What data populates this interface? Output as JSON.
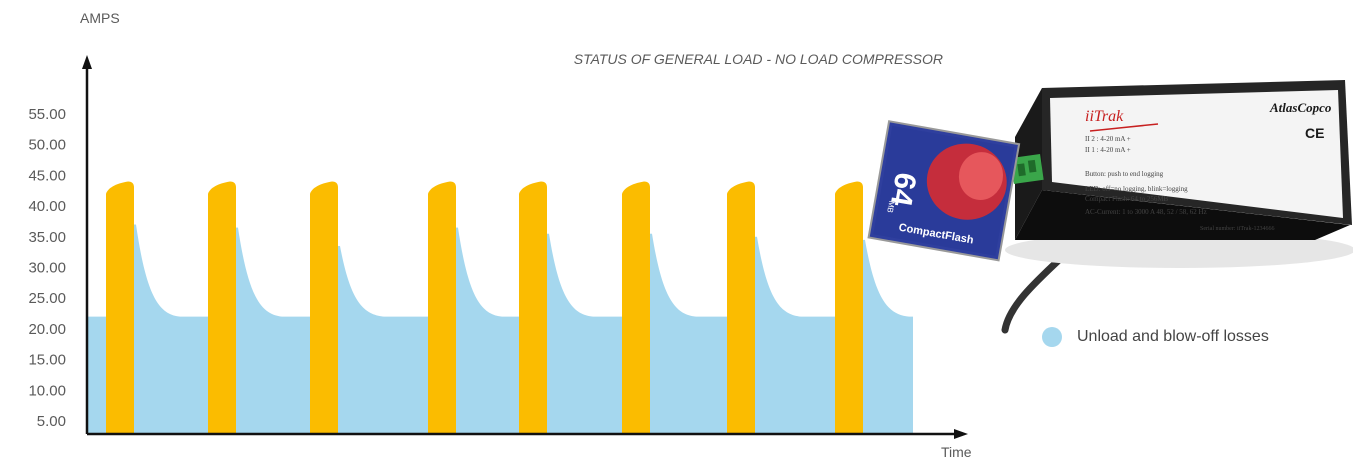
{
  "chart_data": {
    "type": "area",
    "title": "STATUS OF GENERAL LOAD - NO LOAD COMPRESSOR",
    "ylabel": "AMPS",
    "xlabel": "Time",
    "ylim": [
      0,
      60
    ],
    "yticks": [
      "55.00",
      "50.00",
      "45.00",
      "40.00",
      "35.00",
      "30.00",
      "25.00",
      "20.00",
      "15.00",
      "10.00",
      "5.00"
    ],
    "series": [
      {
        "name": "Unload and blow-off losses",
        "color": "#a5d7ee",
        "baseline": 22,
        "blowoff_peaks": [
          37,
          36.5,
          33.5,
          36.5,
          35.5,
          35.5,
          35,
          34.5
        ]
      },
      {
        "name": "",
        "color": "#fbbc00",
        "load_peaks": [
          44,
          44,
          44,
          44,
          44,
          44,
          44,
          44
        ],
        "load_start": 42
      }
    ],
    "grid": false
  },
  "legend": {
    "items": [
      {
        "label": "Unload and blow-off losses",
        "color": "#a5d7ee"
      }
    ]
  },
  "device": {
    "card_brand": "CompactFlash",
    "card_size": "64",
    "card_unit": "MB",
    "logger_name": "iiTrak",
    "logger_brand": "AtlasCopco",
    "ce_mark": "CE",
    "ch2": "II 2 : 4-20 mA +",
    "ch1": "II 1 : 4-20 mA +",
    "button_text": "Button: push to end logging",
    "led_text": "LED: off=no logging, blink=logging",
    "flash_text": "Compact Flash: 64 to 256MB",
    "current_text": "AC-Current: 1 to 3000 A 48, 52 / 58, 62 Hz",
    "serial_text": "Serial number: iiTrak-1234666"
  }
}
